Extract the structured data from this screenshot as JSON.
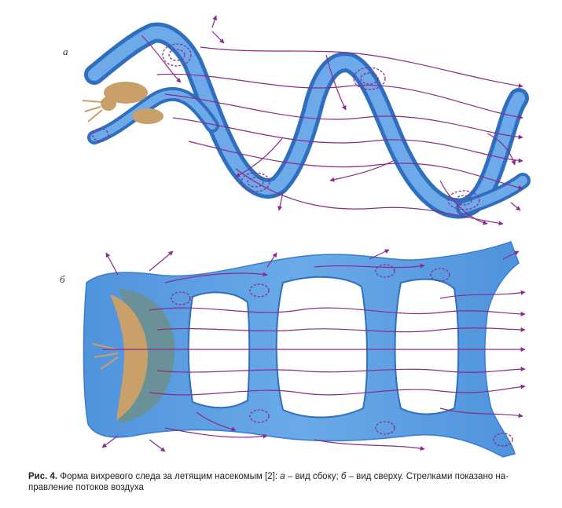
{
  "figure": {
    "panels": [
      {
        "label": "а",
        "view": "side"
      },
      {
        "label": "б",
        "view": "top"
      }
    ],
    "colors": {
      "tube": "#5b9fe3",
      "tube_dark": "#2f6fc0",
      "tube_edge": "#3a7cd0",
      "flow": "#8a2a8a",
      "insect": "#c9a06a",
      "wing_shadow": "#6f8e86"
    },
    "icons": [
      "insect-icon",
      "vortex-ring-icon",
      "flow-arrow-icon"
    ]
  },
  "caption": {
    "lead": "Рис. 4.",
    "part1": " Форма вихревого следа за летящим насекомым [2]: ",
    "a": "а",
    "part2": " – вид сбоку; ",
    "b": "б",
    "part3": " – вид сверху. Стрелками показано на-правление потоков воздуха"
  }
}
